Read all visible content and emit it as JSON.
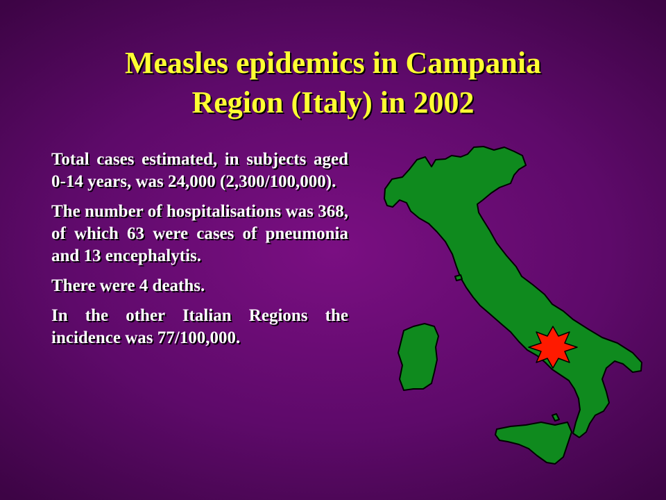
{
  "slide": {
    "title_line1": "Measles epidemics in Campania",
    "title_line2": "Region (Italy) in 2002",
    "paragraphs": [
      "Total cases estimated, in subjects aged 0-14 years, was 24,000 (2,300/100,000).",
      "The number of hospitalisations was 368, of which 63 were cases of pneumonia and 13 encephalytis.",
      "There were 4 deaths.",
      "In the other Italian Regions the incidence was 77/100,000."
    ]
  },
  "colors": {
    "background": "#6a0c74",
    "title": "#ffff33",
    "text": "#ffffff",
    "map_fill": "#0f8a1e",
    "marker": "#ff1a00"
  },
  "icons": {
    "map": "italy-map",
    "marker": "starburst-icon"
  }
}
